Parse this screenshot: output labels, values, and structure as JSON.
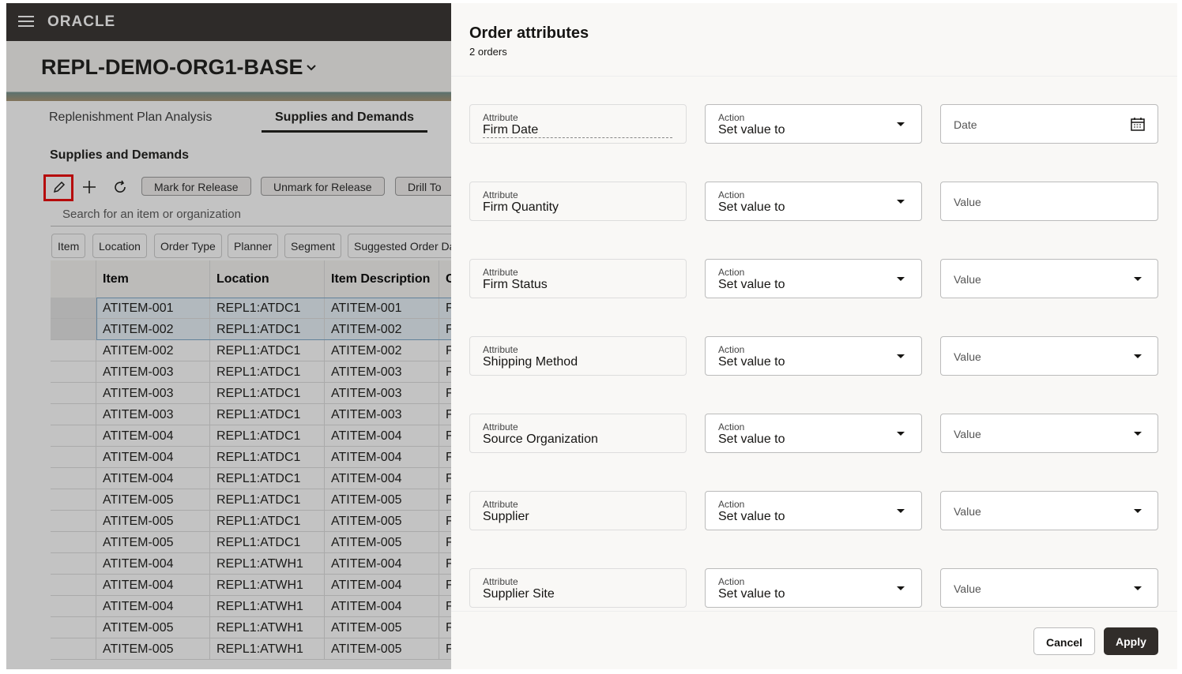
{
  "header": {
    "brand": "ORACLE"
  },
  "page": {
    "title": "REPL-DEMO-ORG1-BASE",
    "tabs": [
      "Replenishment Plan Analysis",
      "Supplies and Demands"
    ],
    "section_title": "Supplies and Demands",
    "buttons": [
      "Mark for Release",
      "Unmark for Release",
      "Drill To"
    ],
    "search_placeholder": "Search for an item or organization",
    "filters": [
      "Item",
      "Location",
      "Order Type",
      "Planner",
      "Segment",
      "Suggested Order Da"
    ],
    "table": {
      "columns": [
        "Item",
        "Location",
        "Item Description",
        "C"
      ],
      "rows": [
        [
          "ATITEM-001",
          "REPL1:ATDC1",
          "ATITEM-001",
          "F"
        ],
        [
          "ATITEM-002",
          "REPL1:ATDC1",
          "ATITEM-002",
          "F"
        ],
        [
          "ATITEM-002",
          "REPL1:ATDC1",
          "ATITEM-002",
          "F"
        ],
        [
          "ATITEM-003",
          "REPL1:ATDC1",
          "ATITEM-003",
          "F"
        ],
        [
          "ATITEM-003",
          "REPL1:ATDC1",
          "ATITEM-003",
          "F"
        ],
        [
          "ATITEM-003",
          "REPL1:ATDC1",
          "ATITEM-003",
          "F"
        ],
        [
          "ATITEM-004",
          "REPL1:ATDC1",
          "ATITEM-004",
          "F"
        ],
        [
          "ATITEM-004",
          "REPL1:ATDC1",
          "ATITEM-004",
          "F"
        ],
        [
          "ATITEM-004",
          "REPL1:ATDC1",
          "ATITEM-004",
          "F"
        ],
        [
          "ATITEM-005",
          "REPL1:ATDC1",
          "ATITEM-005",
          "F"
        ],
        [
          "ATITEM-005",
          "REPL1:ATDC1",
          "ATITEM-005",
          "F"
        ],
        [
          "ATITEM-005",
          "REPL1:ATDC1",
          "ATITEM-005",
          "F"
        ],
        [
          "ATITEM-004",
          "REPL1:ATWH1",
          "ATITEM-004",
          "F"
        ],
        [
          "ATITEM-004",
          "REPL1:ATWH1",
          "ATITEM-004",
          "F"
        ],
        [
          "ATITEM-004",
          "REPL1:ATWH1",
          "ATITEM-004",
          "F"
        ],
        [
          "ATITEM-005",
          "REPL1:ATWH1",
          "ATITEM-005",
          "F"
        ],
        [
          "ATITEM-005",
          "REPL1:ATWH1",
          "ATITEM-005",
          "F"
        ]
      ]
    }
  },
  "panel": {
    "title": "Order attributes",
    "subtitle": "2 orders",
    "rows": [
      {
        "attribute_label": "Attribute",
        "attribute": "Firm Date",
        "action_label": "Action",
        "action": "Set value to",
        "value_placeholder": "Date"
      },
      {
        "attribute_label": "Attribute",
        "attribute": "Firm Quantity",
        "action_label": "Action",
        "action": "Set value to",
        "value_placeholder": "Value"
      },
      {
        "attribute_label": "Attribute",
        "attribute": "Firm Status",
        "action_label": "Action",
        "action": "Set value to",
        "value_placeholder": "Value"
      },
      {
        "attribute_label": "Attribute",
        "attribute": "Shipping Method",
        "action_label": "Action",
        "action": "Set value to",
        "value_placeholder": "Value"
      },
      {
        "attribute_label": "Attribute",
        "attribute": "Source Organization",
        "action_label": "Action",
        "action": "Set value to",
        "value_placeholder": "Value"
      },
      {
        "attribute_label": "Attribute",
        "attribute": "Supplier",
        "action_label": "Action",
        "action": "Set value to",
        "value_placeholder": "Value"
      },
      {
        "attribute_label": "Attribute",
        "attribute": "Supplier Site",
        "action_label": "Action",
        "action": "Set value to",
        "value_placeholder": "Value"
      }
    ],
    "cancel": "Cancel",
    "apply": "Apply"
  }
}
